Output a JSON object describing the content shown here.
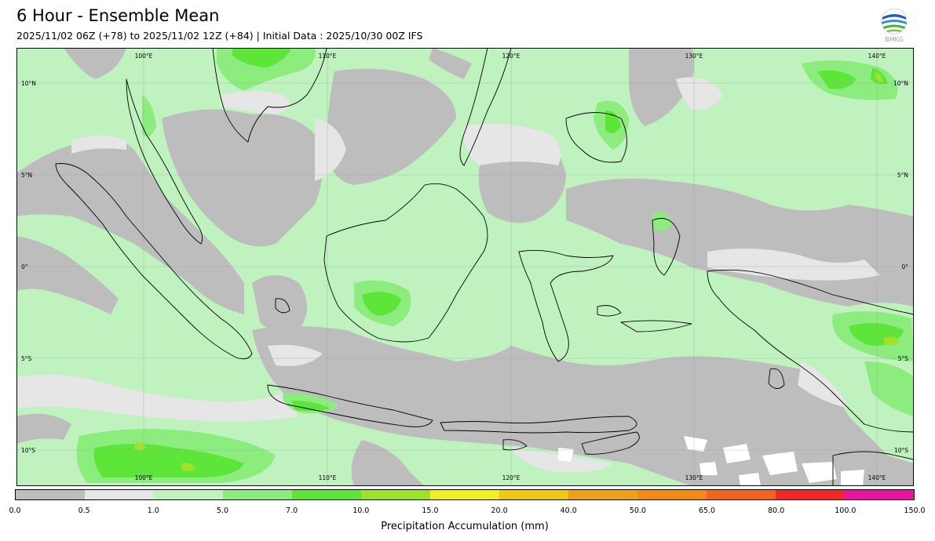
{
  "header": {
    "title": "6 Hour - Ensemble Mean",
    "subtitle": "2025/11/02 06Z (+78) to 2025/11/02 12Z (+84) | Initial Data : 2025/10/30 00Z IFS"
  },
  "logo": {
    "text": "BMKG",
    "icon": "bmkg-logo-icon"
  },
  "map": {
    "lon_labels_top": [
      "100°E",
      "110°E",
      "120°E",
      "130°E",
      "140°E"
    ],
    "lon_labels_bottom": [
      "100°E",
      "110°E",
      "120°E",
      "130°E",
      "140°E"
    ],
    "lat_labels_left": [
      "10°N",
      "5°N",
      "0°",
      "5°S",
      "10°S"
    ],
    "lat_labels_right": [
      "10°N",
      "5°N",
      "0°",
      "5°S",
      "10°S"
    ],
    "colors": {
      "ocean_dry": "#bdbdbd",
      "light": "#e6e6e6",
      "pale_green": "#bff2bf",
      "mid_green": "#8ced7e",
      "bright_green": "#5ee53a",
      "yellow_green": "#9ee22a",
      "coast": "#000000"
    }
  },
  "colorbar": {
    "colors": [
      "#bdbdbd",
      "#e6e6e6",
      "#bff2bf",
      "#8ced7e",
      "#5ee53a",
      "#9ee22a",
      "#f0f020",
      "#f0c814",
      "#f0a014",
      "#f08c14",
      "#f0641e",
      "#f02828",
      "#e614a0"
    ],
    "ticks": [
      "0.0",
      "0.5",
      "1.0",
      "5.0",
      "7.0",
      "10.0",
      "15.0",
      "20.0",
      "40.0",
      "50.0",
      "65.0",
      "80.0",
      "100.0",
      "150.0"
    ],
    "label": "Precipitation Accumulation (mm)"
  }
}
